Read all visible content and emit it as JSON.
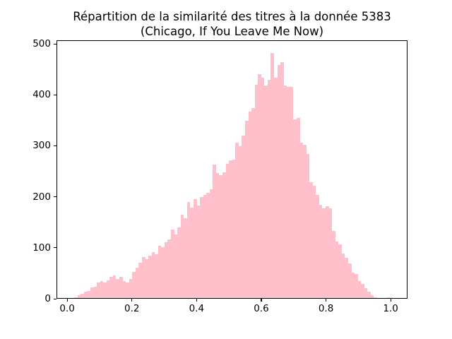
{
  "title": {
    "line1": "Répartition de la similarité des titres à la donnée 5383",
    "line2": "(Chicago, If You Leave Me Now)"
  },
  "colors": {
    "bar": "#ffc0cb",
    "text": "#000000",
    "spine": "#000000",
    "background": "#ffffff"
  },
  "chart_data": {
    "type": "bar",
    "subtype": "histogram",
    "title": "Répartition de la similarité des titres à la donnée 5383 (Chicago, If You Leave Me Now)",
    "xlabel": "",
    "ylabel": "",
    "legend": "none",
    "grid": false,
    "bar_color": "#ffc0cb",
    "bin_start": 0.0,
    "bin_width": 0.01,
    "bin_count": 100,
    "xlim": [
      -0.033,
      1.052
    ],
    "ylim": [
      0,
      507
    ],
    "xticks": [
      0.0,
      0.2,
      0.4,
      0.6,
      0.8,
      1.0
    ],
    "xtick_labels": [
      "0.0",
      "0.2",
      "0.4",
      "0.6",
      "0.8",
      "1.0"
    ],
    "yticks": [
      0,
      100,
      200,
      300,
      400,
      500
    ],
    "ytick_labels": [
      "0",
      "100",
      "200",
      "300",
      "400",
      "500"
    ],
    "values": [
      0,
      0,
      2,
      5,
      8,
      12,
      14,
      21,
      23,
      30,
      33,
      30,
      35,
      42,
      45,
      37,
      42,
      33,
      30,
      37,
      51,
      60,
      69,
      81,
      77,
      83,
      90,
      87,
      103,
      101,
      110,
      115,
      135,
      126,
      140,
      165,
      158,
      190,
      179,
      195,
      183,
      199,
      204,
      208,
      215,
      263,
      247,
      243,
      248,
      265,
      272,
      273,
      307,
      300,
      320,
      350,
      368,
      375,
      420,
      442,
      435,
      419,
      430,
      483,
      435,
      460,
      465,
      419,
      417,
      417,
      352,
      355,
      307,
      302,
      284,
      229,
      222,
      204,
      184,
      177,
      181,
      177,
      133,
      112,
      106,
      88,
      80,
      68,
      50,
      47,
      33,
      28,
      19,
      12,
      5,
      1,
      0,
      0,
      0,
      2
    ]
  }
}
